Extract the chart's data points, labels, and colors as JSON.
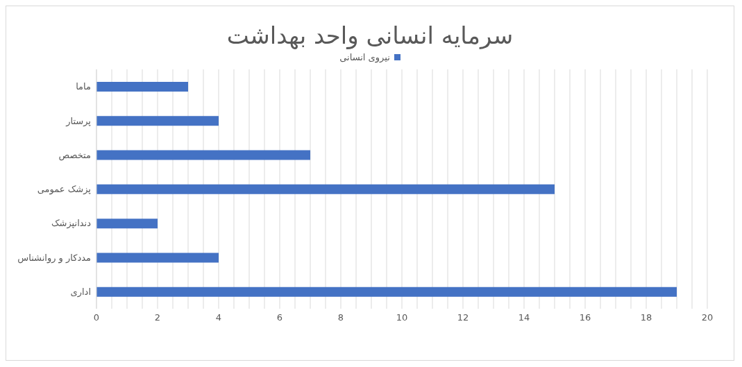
{
  "chart_data": {
    "type": "bar",
    "orientation": "horizontal",
    "title": "سرمایه انسانی واحد بهداشت",
    "categories": [
      "ماما",
      "پرستار",
      "متخصص",
      "پزشک عمومی",
      "دندانپزشک",
      "مددکار و روانشناس",
      "اداری"
    ],
    "series": [
      {
        "name": "نیروی انسانی",
        "color": "#4472c4",
        "values": [
          3,
          4,
          7,
          15,
          2,
          4,
          19
        ]
      }
    ],
    "xlim": [
      0,
      20
    ],
    "xticks": [
      0,
      {
        "value": 0.5,
        "label": null
      },
      {
        "value": 1,
        "label": null
      },
      {
        "value": 1.5,
        "label": null
      },
      2,
      {
        "value": 2.5,
        "label": null
      },
      {
        "value": 3,
        "label": null
      },
      {
        "value": 3.5,
        "label": null
      },
      4,
      {
        "value": 4.5,
        "label": null
      },
      {
        "value": 5,
        "label": null
      },
      {
        "value": 5.5,
        "label": null
      },
      6,
      {
        "value": 6.5,
        "label": null
      },
      {
        "value": 7,
        "label": null
      },
      {
        "value": 7.5,
        "label": null
      },
      8,
      {
        "value": 8.5,
        "label": null
      },
      {
        "value": 9,
        "label": null
      },
      {
        "value": 9.5,
        "label": null
      },
      10,
      {
        "value": 10.5,
        "label": null
      },
      {
        "value": 11,
        "label": null
      },
      {
        "value": 11.5,
        "label": null
      },
      12,
      {
        "value": 12.5,
        "label": null
      },
      {
        "value": 13,
        "label": null
      },
      {
        "value": 13.5,
        "label": null
      },
      14,
      {
        "value": 14.5,
        "label": null
      },
      {
        "value": 15,
        "label": null
      },
      {
        "value": 15.5,
        "label": null
      },
      16,
      {
        "value": 16.5,
        "label": null
      },
      {
        "value": 17,
        "label": null
      },
      {
        "value": 17.5,
        "label": null
      },
      18,
      {
        "value": 18.5,
        "label": null
      },
      {
        "value": 19,
        "label": null
      },
      {
        "value": 19.5,
        "label": null
      },
      20
    ],
    "grid": "x",
    "legend": "top"
  }
}
